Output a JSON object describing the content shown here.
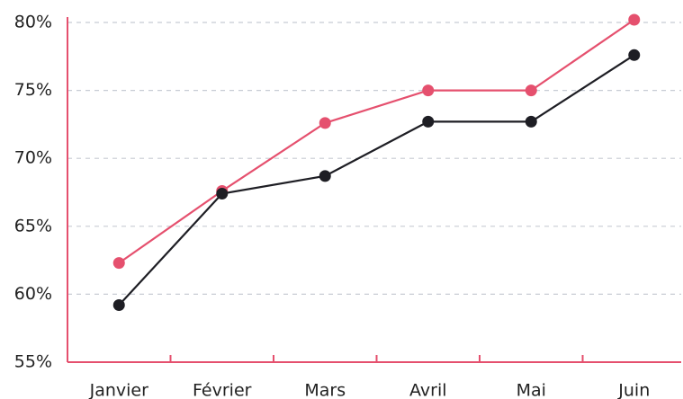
{
  "chart_data": {
    "type": "line",
    "categories": [
      "Janvier",
      "Février",
      "Mars",
      "Avril",
      "Mai",
      "Juin"
    ],
    "series": [
      {
        "color": "#e5506e",
        "values": [
          62.3,
          67.6,
          72.6,
          75.0,
          75.0,
          80.2
        ]
      },
      {
        "color": "#1e1e24",
        "values": [
          59.2,
          67.4,
          68.7,
          72.7,
          72.7,
          77.6
        ]
      }
    ],
    "ylim": [
      55,
      80
    ],
    "yticks": [
      {
        "value": 55,
        "label": "55%"
      },
      {
        "value": 60,
        "label": "60%"
      },
      {
        "value": 65,
        "label": "65%"
      },
      {
        "value": 70,
        "label": "70%"
      },
      {
        "value": 75,
        "label": "75%"
      },
      {
        "value": 80,
        "label": "80%"
      }
    ],
    "grid": true
  }
}
